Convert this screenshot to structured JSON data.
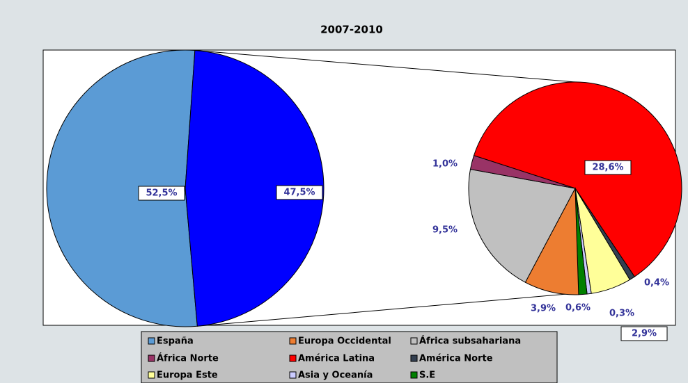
{
  "chart_data": {
    "type": "pie_of_pie",
    "title": "2007-2010",
    "categories": [
      "España",
      "Europa Occidental",
      "África subsahariana",
      "África Norte",
      "América Latina",
      "América Norte",
      "Europa Este",
      "Asia y Oceanía",
      "S.E"
    ],
    "colors": [
      "#5b9bd5",
      "#ed7d31",
      "#c0c0c0",
      "#993366",
      "#ff0000",
      "#333f50",
      "#ffff99",
      "#ccccff",
      "#008000"
    ],
    "values": [
      52.5,
      3.9,
      9.5,
      1.0,
      28.6,
      0.4,
      2.9,
      0.3,
      0.6
    ],
    "value_labels": [
      "52,5%",
      "3,9%",
      "9,5%",
      "1,0%",
      "28,6%",
      "0,4%",
      "2,9%",
      "0,3%",
      "0,6%"
    ],
    "other_value": 47.5,
    "other_value_label": "47,5%",
    "other_color": "#0000ff"
  }
}
